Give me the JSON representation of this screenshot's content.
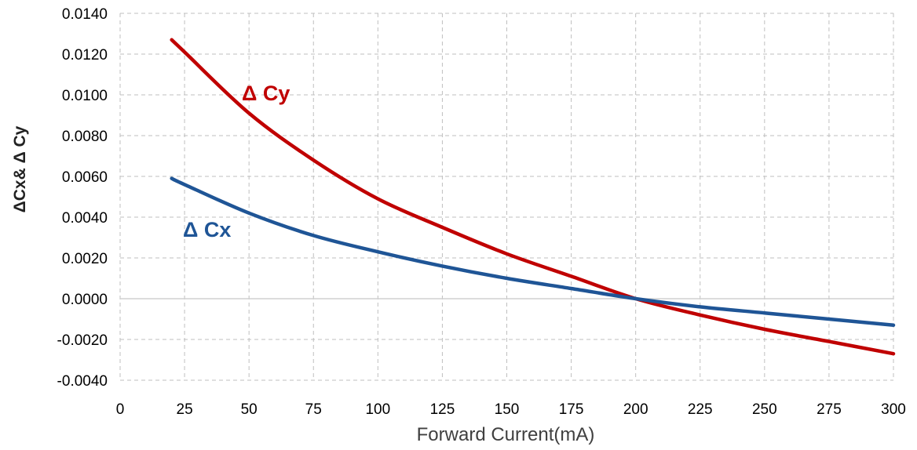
{
  "chart_data": {
    "type": "line",
    "xlabel": "Forward Current(mA)",
    "ylabel": "ΔCx& Δ Cy",
    "xlim": [
      0,
      300
    ],
    "ylim": [
      -0.004,
      0.014
    ],
    "x_ticks": [
      "0",
      "25",
      "50",
      "75",
      "100",
      "125",
      "150",
      "175",
      "200",
      "225",
      "250",
      "275",
      "300"
    ],
    "y_ticks": [
      "0.0140",
      "0.0120",
      "0.0100",
      "0.0080",
      "0.0060",
      "0.0040",
      "0.0020",
      "0.0000",
      "-0.0020",
      "-0.0040"
    ],
    "grid": true,
    "series": [
      {
        "name": "Δ Cy",
        "color": "#c00000",
        "x": [
          20,
          25,
          50,
          75,
          100,
          125,
          150,
          175,
          200,
          225,
          250,
          275,
          300
        ],
        "values": [
          0.0127,
          0.0121,
          0.0091,
          0.0068,
          0.0049,
          0.0035,
          0.0022,
          0.0011,
          0.0,
          -0.0008,
          -0.0015,
          -0.0021,
          -0.0027
        ]
      },
      {
        "name": "Δ Cx",
        "color": "#1f5596",
        "x": [
          20,
          25,
          50,
          75,
          100,
          125,
          150,
          175,
          200,
          225,
          250,
          275,
          300
        ],
        "values": [
          0.0059,
          0.0056,
          0.0042,
          0.0031,
          0.0023,
          0.0016,
          0.001,
          0.0005,
          0.0,
          -0.0004,
          -0.0007,
          -0.001,
          -0.0013
        ]
      }
    ]
  }
}
